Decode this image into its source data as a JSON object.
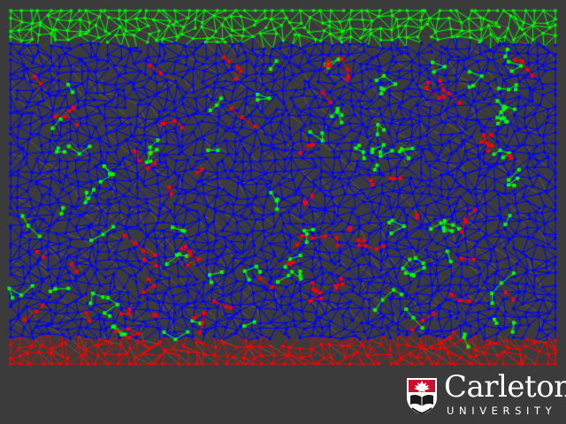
{
  "visualization": {
    "background_color": "#3b3b3b",
    "top_boundary_color": "#00ff00",
    "bottom_boundary_color": "#ff0000",
    "interior_edge_color": "#0000ff",
    "green_cluster_color": "#00ff00",
    "red_cluster_color": "#ff0000",
    "faint_edge_color": "#8a7a3a"
  },
  "logo": {
    "name": "Carleton",
    "subtitle": "UNIVERSITY",
    "icon": "carleton-shield-icon",
    "shield_color": "#c8102e"
  }
}
